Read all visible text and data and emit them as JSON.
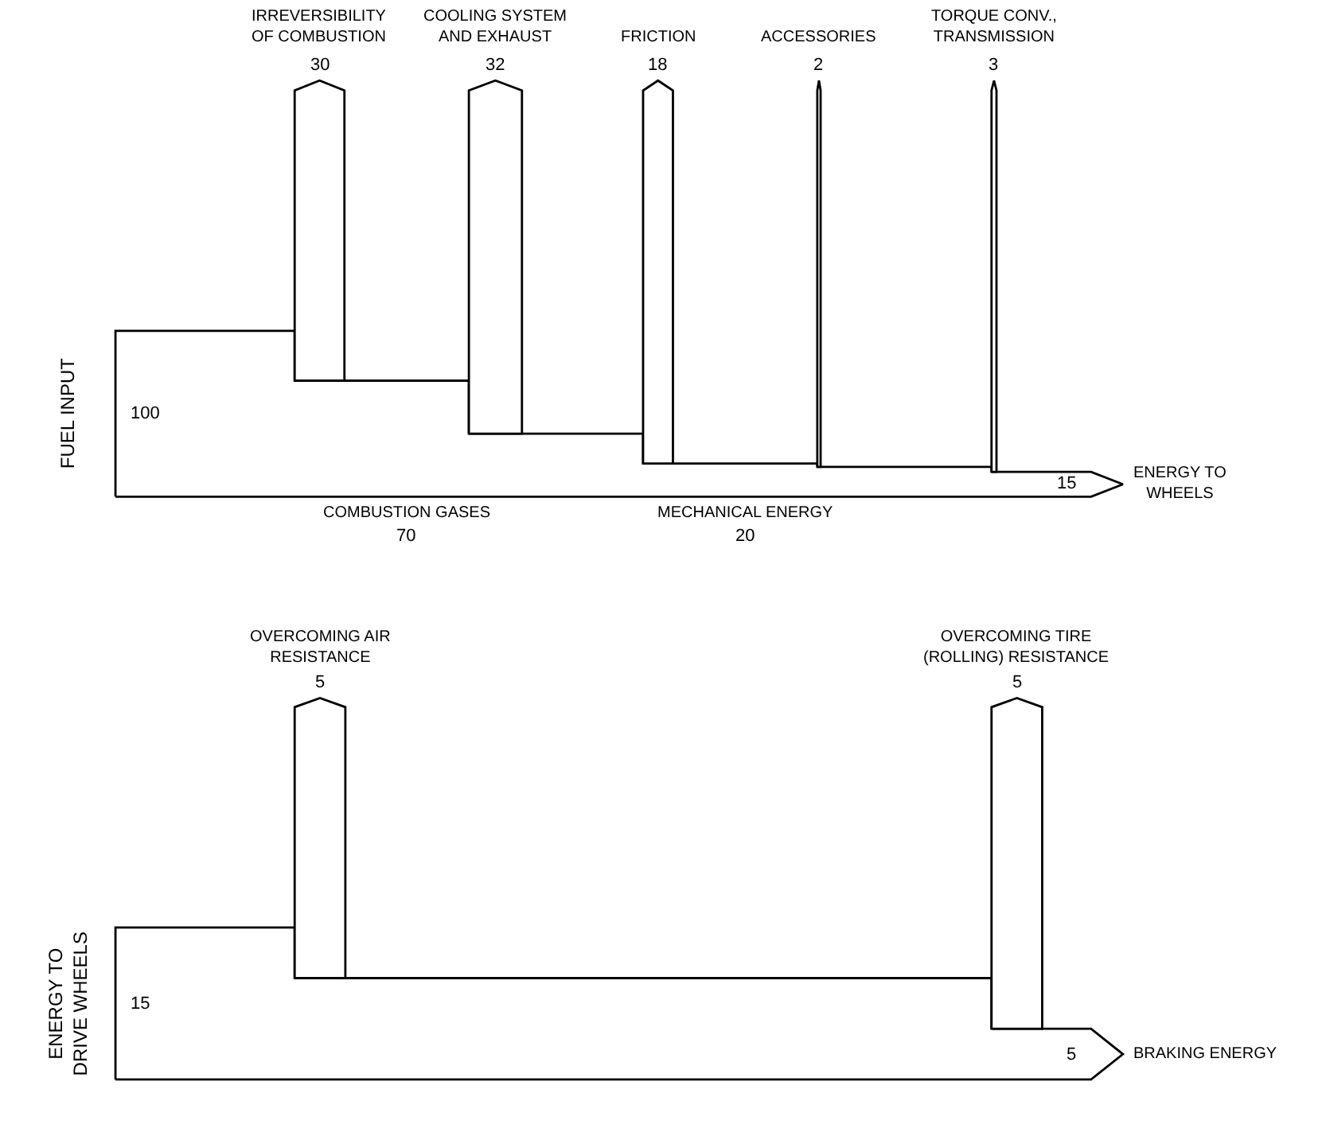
{
  "chart_data": [
    {
      "type": "other",
      "data_labels": true,
      "categories": [
        "FUEL INPUT",
        "IRREVERSIBILITY OF COMBUSTION",
        "COMBUSTION GASES",
        "COOLING SYSTEM AND EXHAUST",
        "FRICTION",
        "MECHANICAL ENERGY",
        "ACCESSORIES",
        "TORQUE CONV., TRANSMISSION",
        "ENERGY TO WHEELS"
      ],
      "values": [
        100,
        30,
        70,
        32,
        18,
        20,
        2,
        3,
        15
      ]
    },
    {
      "type": "other",
      "data_labels": true,
      "categories": [
        "ENERGY TO DRIVE WHEELS",
        "OVERCOMING AIR RESISTANCE",
        "OVERCOMING TIRE (ROLLING) RESISTANCE",
        "BRAKING ENERGY"
      ],
      "values": [
        15,
        5,
        5,
        5
      ]
    }
  ]
}
